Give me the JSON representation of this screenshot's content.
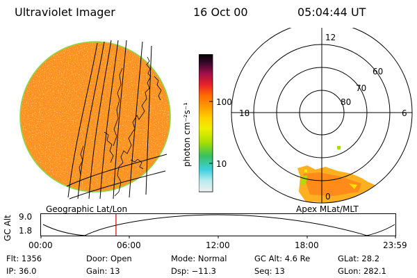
{
  "header": {
    "instrument": "Ultraviolet Imager",
    "date": "16 Oct 00",
    "time": "05:04:44 UT"
  },
  "colorbar": {
    "unit_label": "photon cm⁻²s⁻¹",
    "tick_labels": [
      "100",
      "10"
    ],
    "colors": [
      "#f0f0f0",
      "#b8ecf0",
      "#3fd0e0",
      "#38c060",
      "#a8e000",
      "#f0ee00",
      "#ffd000",
      "#ff9a00",
      "#ff6a00",
      "#e8202a",
      "#a0104a",
      "#400830",
      "#000000"
    ]
  },
  "polar_plot": {
    "mlt_labels": {
      "top": "12",
      "left": "18",
      "right": "6",
      "bottom": "0"
    },
    "lat_labels": [
      "60",
      "70",
      "80"
    ]
  },
  "timeline": {
    "left_label": "Geographic Lat/Lon",
    "right_label": "Apex MLat/MLT",
    "axis_title": "GC Alt",
    "y_ticks": [
      "9.0",
      "1.8"
    ],
    "x_ticks": [
      "00:00",
      "06:00",
      "12:00",
      "18:00",
      "23:59"
    ],
    "current_time_fraction": 0.2116,
    "marker_color": "#cc0000"
  },
  "info": {
    "flt": "Flt: 1356",
    "ip": "IP: 36.0",
    "door": "Door: Open",
    "gain": "Gain: 13",
    "mode": "Mode: Normal",
    "dsp": "Dsp:  −11.3",
    "gc_alt": "GC Alt: 4.6 Re",
    "seq": "Seq: 13",
    "glat": "GLat:  28.2",
    "glon": "GLon: 282.1"
  }
}
